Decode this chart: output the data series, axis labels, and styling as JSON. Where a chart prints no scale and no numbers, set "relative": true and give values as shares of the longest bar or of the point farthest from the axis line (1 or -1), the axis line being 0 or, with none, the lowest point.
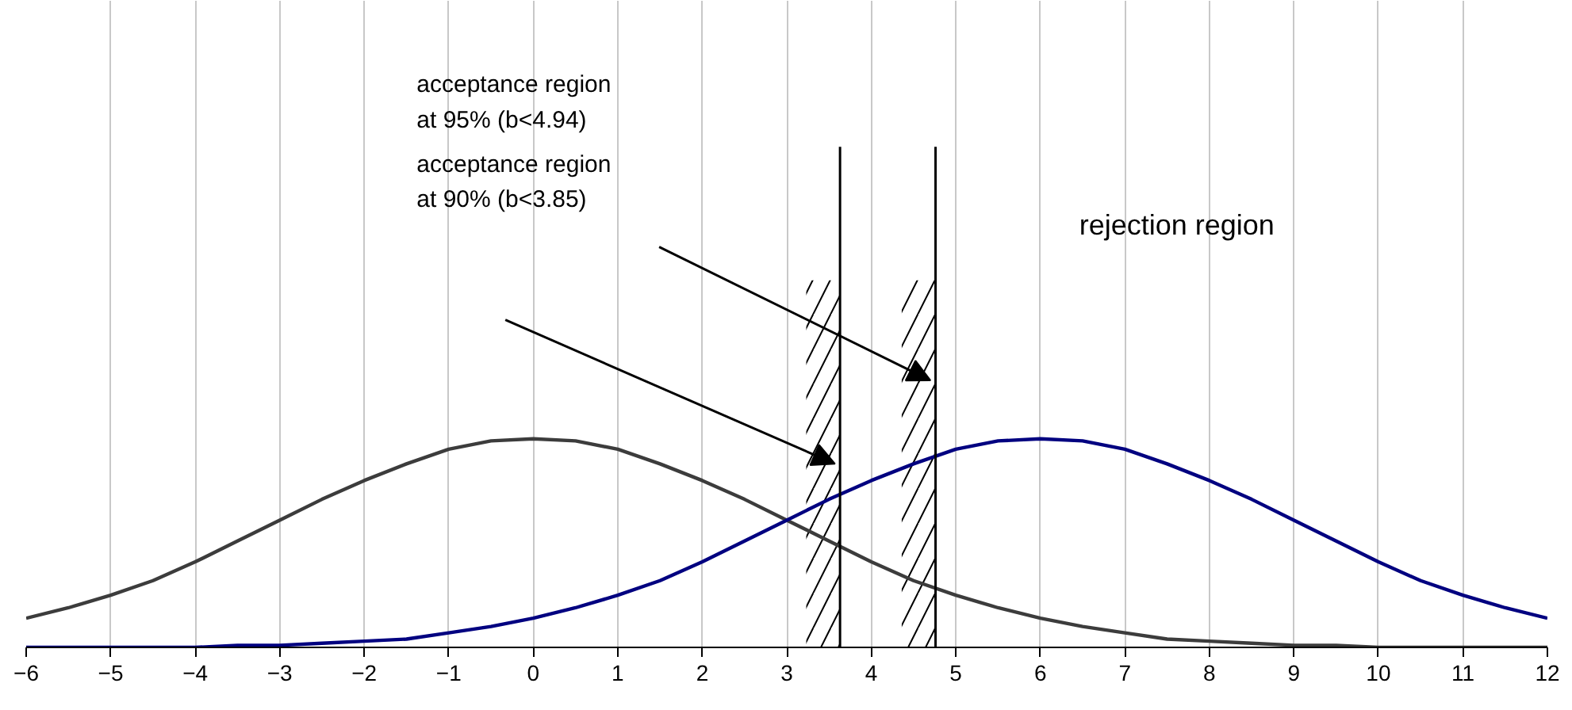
{
  "chart_data": {
    "type": "line",
    "relative": true,
    "x": [
      -6,
      -5.5,
      -5,
      -4.5,
      -4,
      -3.5,
      -3,
      -2.5,
      -2,
      -1.5,
      -1,
      -0.5,
      0,
      0.5,
      1,
      1.5,
      2,
      2.5,
      3,
      3.5,
      4,
      4.5,
      5,
      5.5,
      6,
      6.5,
      7,
      7.5,
      8,
      8.5,
      9,
      9.5,
      10,
      10.5,
      11,
      11.5,
      12
    ],
    "series": [
      {
        "color": "#3c3c3c",
        "values": [
          0.14,
          0.19,
          0.25,
          0.32,
          0.41,
          0.51,
          0.61,
          0.71,
          0.8,
          0.88,
          0.95,
          0.99,
          1.0,
          0.99,
          0.95,
          0.88,
          0.8,
          0.71,
          0.61,
          0.51,
          0.41,
          0.32,
          0.25,
          0.19,
          0.14,
          0.1,
          0.07,
          0.04,
          0.03,
          0.02,
          0.01,
          0.01,
          0,
          0,
          0,
          0,
          0
        ]
      },
      {
        "color": "#000080",
        "values": [
          0,
          0,
          0,
          0,
          0,
          0.01,
          0.01,
          0.02,
          0.03,
          0.04,
          0.07,
          0.1,
          0.14,
          0.19,
          0.25,
          0.32,
          0.41,
          0.51,
          0.61,
          0.71,
          0.8,
          0.88,
          0.95,
          0.99,
          1.0,
          0.99,
          0.95,
          0.88,
          0.8,
          0.71,
          0.61,
          0.51,
          0.41,
          0.32,
          0.25,
          0.19,
          0.14
        ]
      }
    ],
    "xlim": [
      -6,
      12
    ],
    "xticks": [
      -6,
      -5,
      -4,
      -3,
      -2,
      -1,
      0,
      1,
      2,
      3,
      4,
      5,
      6,
      7,
      8,
      9,
      10,
      11,
      12
    ],
    "grid": "x",
    "ref_lines": [
      {
        "axis": "x",
        "value": 3.63,
        "color": "#000000"
      },
      {
        "axis": "x",
        "value": 4.76,
        "color": "#000000"
      }
    ],
    "bands": [
      {
        "axis": "x",
        "from": 3.23,
        "to": 3.63,
        "color": "#000000"
      },
      {
        "axis": "x",
        "from": 4.36,
        "to": 4.76,
        "color": "#000000"
      }
    ],
    "annotations": [
      "acceptance region\nat 95% (b<4.94)",
      "acceptance region\nat 90% (b<3.85)",
      "rejection region"
    ]
  }
}
